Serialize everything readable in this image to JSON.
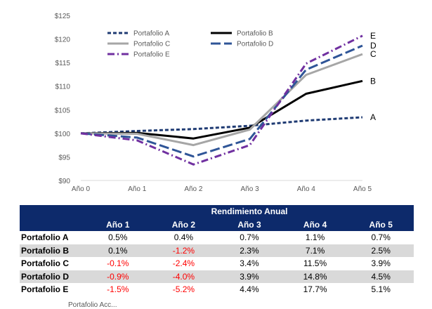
{
  "chart_data": {
    "type": "line",
    "x": [
      "Año 0",
      "Año 1",
      "Año 2",
      "Año 3",
      "Año 4",
      "Año 5"
    ],
    "ylim": [
      90,
      125
    ],
    "yticks": [
      "$90",
      "$95",
      "$100",
      "$105",
      "$110",
      "$115",
      "$120",
      "$125"
    ],
    "yticks_values": [
      90,
      95,
      100,
      105,
      110,
      115,
      120,
      125
    ],
    "grid": false,
    "legend_position": "top-left",
    "series": [
      {
        "name": "Portafolio A",
        "end_label": "A",
        "color": "#1f3b73",
        "dash": "short-dash",
        "values": [
          100,
          100.5,
          100.9,
          101.6,
          102.7,
          103.4
        ]
      },
      {
        "name": "Portafolio B",
        "end_label": "B",
        "color": "#000000",
        "dash": "solid",
        "values": [
          100,
          100.1,
          98.9,
          101.2,
          108.4,
          111.1
        ]
      },
      {
        "name": "Portafolio C",
        "end_label": "C",
        "color": "#a6a6a6",
        "dash": "solid",
        "values": [
          100,
          99.9,
          97.5,
          100.8,
          112.4,
          116.8
        ]
      },
      {
        "name": "Portafolio D",
        "end_label": "D",
        "color": "#2f5597",
        "dash": "long-dash",
        "values": [
          100,
          99.1,
          95.1,
          98.8,
          113.5,
          118.6
        ]
      },
      {
        "name": "Portafolio E",
        "end_label": "E",
        "color": "#7030a0",
        "dash": "dash-dot",
        "values": [
          100,
          98.5,
          93.4,
          97.5,
          114.8,
          120.7
        ]
      }
    ]
  },
  "table": {
    "title": "Rendimiento Anual",
    "columns": [
      "Año 1",
      "Año 2",
      "Año 3",
      "Año 4",
      "Año 5"
    ],
    "rows": [
      {
        "name": "Portafolio A",
        "values": [
          "0.5%",
          "0.4%",
          "0.7%",
          "1.1%",
          "0.7%"
        ]
      },
      {
        "name": "Portafolio B",
        "values": [
          "0.1%",
          "-1.2%",
          "2.3%",
          "7.1%",
          "2.5%"
        ]
      },
      {
        "name": "Portafolio C",
        "values": [
          "-0.1%",
          "-2.4%",
          "3.4%",
          "11.5%",
          "3.9%"
        ]
      },
      {
        "name": "Portafolio D",
        "values": [
          "-0.9%",
          "-4.0%",
          "3.9%",
          "14.8%",
          "4.5%"
        ]
      },
      {
        "name": "Portafolio E",
        "values": [
          "-1.5%",
          "-5.2%",
          "4.4%",
          "17.7%",
          "5.1%"
        ]
      }
    ],
    "negative_color": "#ff0000"
  },
  "footnote": "Portafolio Acc..."
}
